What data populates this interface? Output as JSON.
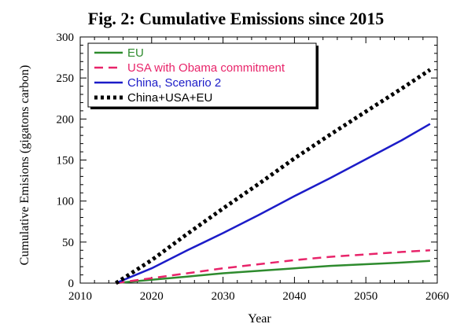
{
  "chart_data": {
    "type": "line",
    "title": "Fig. 2: Cumulative Emissions since 2015",
    "xlabel": "Year",
    "ylabel": "Cumulative Emisions (gigatons carbon)",
    "xlim": [
      2010,
      2060
    ],
    "ylim": [
      0,
      300
    ],
    "xticks": [
      2010,
      2020,
      2030,
      2040,
      2050,
      2060
    ],
    "yticks": [
      0,
      50,
      100,
      150,
      200,
      250,
      300
    ],
    "grid": false,
    "legend_position": "top-left",
    "series": [
      {
        "name": "EU",
        "color": "#2e8b2e",
        "style": "solid",
        "x": [
          2015,
          2020,
          2025,
          2030,
          2035,
          2040,
          2045,
          2050,
          2055,
          2059
        ],
        "y": [
          0,
          4,
          8,
          12,
          15,
          18,
          21,
          23,
          25,
          27
        ]
      },
      {
        "name": "USA with Obama commitment",
        "color": "#e8246a",
        "style": "dashed",
        "x": [
          2015,
          2020,
          2025,
          2030,
          2035,
          2040,
          2045,
          2050,
          2055,
          2059
        ],
        "y": [
          0,
          6,
          12,
          18,
          23,
          28,
          32,
          35,
          38,
          40
        ]
      },
      {
        "name": "China, Scenario 2",
        "color": "#1c1cc8",
        "style": "solid",
        "x": [
          2015,
          2020,
          2025,
          2030,
          2035,
          2040,
          2045,
          2050,
          2055,
          2059
        ],
        "y": [
          0,
          18,
          40,
          61,
          83,
          106,
          128,
          151,
          174,
          194
        ]
      },
      {
        "name": "China+USA+EU",
        "color": "#000000",
        "style": "dotted",
        "x": [
          2015,
          2020,
          2025,
          2030,
          2035,
          2040,
          2045,
          2050,
          2055,
          2059
        ],
        "y": [
          0,
          28,
          60,
          91,
          121,
          152,
          181,
          209,
          237,
          260
        ]
      }
    ]
  }
}
